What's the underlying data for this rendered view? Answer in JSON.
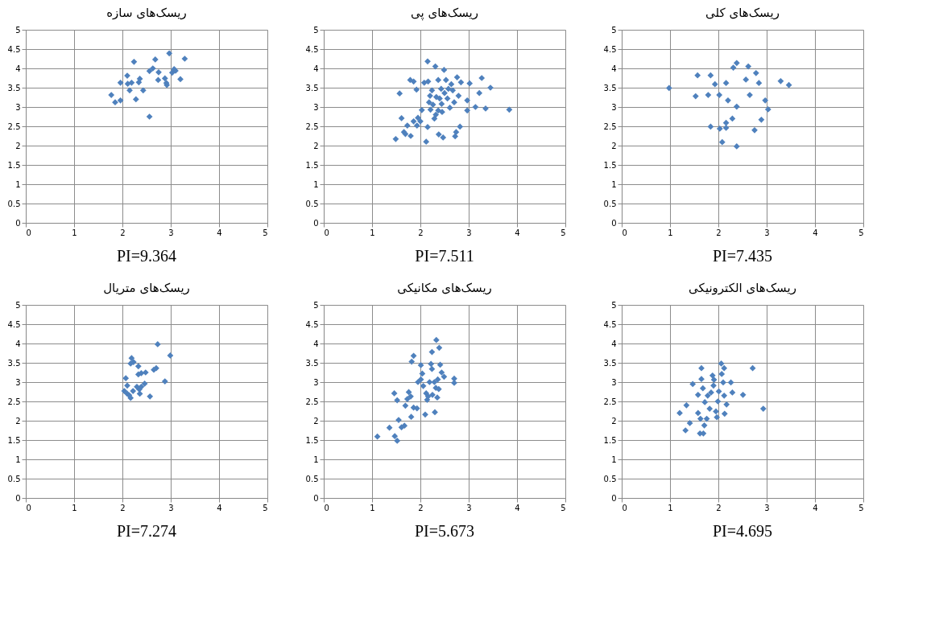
{
  "chart_data": [
    {
      "type": "scatter",
      "title": "ریسک‌های سازه",
      "annotations": [
        "PI=9.364"
      ],
      "xlim": [
        0,
        5
      ],
      "ylim": [
        0,
        5
      ],
      "xticks": [
        0,
        1,
        2,
        3,
        4,
        5
      ],
      "yticks": [
        0,
        0.5,
        1,
        1.5,
        2,
        2.5,
        3,
        3.5,
        4,
        4.5,
        5
      ],
      "grid": true,
      "marker": "diamond",
      "series": [
        {
          "color": "#4f81bd",
          "x": [
            1.77,
            1.85,
            1.96,
            1.96,
            2.1,
            2.11,
            2.15,
            2.19,
            2.24,
            2.28,
            2.34,
            2.36,
            2.43,
            2.56,
            2.56,
            2.63,
            2.68,
            2.74,
            2.75,
            2.88,
            2.91,
            2.92,
            2.97,
            3.03,
            3.07,
            3.1,
            3.2,
            3.29
          ],
          "values": [
            3.31,
            3.12,
            3.17,
            3.63,
            3.81,
            3.6,
            3.43,
            3.63,
            4.17,
            3.2,
            3.64,
            3.73,
            3.43,
            2.75,
            3.93,
            4.0,
            4.23,
            3.7,
            3.9,
            3.74,
            3.62,
            3.57,
            4.39,
            3.89,
            3.98,
            3.94,
            3.72,
            4.25
          ]
        }
      ]
    },
    {
      "type": "scatter",
      "title": "ریسک‌های پی",
      "annotations": [
        "PI=7.511"
      ],
      "xlim": [
        0,
        5
      ],
      "ylim": [
        0,
        5
      ],
      "xticks": [
        0,
        1,
        2,
        3,
        4,
        5
      ],
      "yticks": [
        0,
        0.5,
        1,
        1.5,
        2,
        2.5,
        3,
        3.5,
        4,
        4.5,
        5
      ],
      "grid": true,
      "marker": "diamond",
      "series": [
        {
          "color": "#4f81bd",
          "x": [
            1.49,
            1.57,
            1.61,
            1.66,
            1.69,
            1.73,
            1.79,
            1.8,
            1.86,
            1.86,
            1.92,
            1.93,
            1.95,
            2.0,
            2.03,
            2.12,
            2.15,
            2.15,
            2.16,
            2.18,
            2.2,
            2.21,
            2.24,
            2.26,
            2.29,
            2.31,
            2.33,
            2.37,
            2.37,
            2.38,
            2.4,
            2.43,
            2.44,
            2.45,
            2.47,
            2.49,
            2.5,
            2.53,
            2.56,
            2.58,
            2.61,
            2.64,
            2.67,
            2.7,
            2.72,
            2.74,
            2.76,
            2.79,
            2.82,
            2.84,
            2.97,
            2.97,
            3.02,
            3.14,
            3.22,
            3.27,
            3.35,
            3.45,
            3.84,
            2.08,
            2.32
          ],
          "values": [
            2.17,
            3.35,
            2.71,
            2.35,
            2.3,
            2.52,
            3.7,
            2.25,
            3.66,
            2.63,
            3.45,
            2.52,
            2.72,
            2.63,
            2.92,
            2.1,
            2.48,
            4.18,
            3.66,
            3.12,
            3.29,
            2.93,
            3.43,
            3.06,
            2.7,
            4.05,
            3.26,
            3.7,
            2.91,
            2.29,
            3.22,
            3.47,
            3.08,
            2.87,
            2.21,
            3.96,
            3.36,
            3.7,
            3.22,
            3.47,
            2.98,
            3.59,
            3.43,
            3.12,
            2.24,
            2.35,
            3.77,
            3.29,
            2.49,
            3.64,
            3.17,
            2.91,
            3.61,
            3.0,
            3.36,
            3.75,
            2.96,
            3.5,
            2.93,
            3.63,
            2.8
          ]
        }
      ]
    },
    {
      "type": "scatter",
      "title": "ریسک‌های کلی",
      "annotations": [
        "PI=7.435"
      ],
      "xlim": [
        0,
        5
      ],
      "ylim": [
        0,
        5
      ],
      "xticks": [
        0,
        1,
        2,
        3,
        4,
        5
      ],
      "yticks": [
        0,
        0.5,
        1,
        1.5,
        2,
        2.5,
        3,
        3.5,
        4,
        4.5,
        5
      ],
      "grid": true,
      "marker": "diamond",
      "series": [
        {
          "color": "#4f81bd",
          "x": [
            0.98,
            1.53,
            1.57,
            1.79,
            1.84,
            1.84,
            1.93,
            2.02,
            2.03,
            2.08,
            2.16,
            2.16,
            2.16,
            2.2,
            2.29,
            2.31,
            2.38,
            2.38,
            2.38,
            2.57,
            2.62,
            2.65,
            2.75,
            2.78,
            2.84,
            2.89,
            2.97,
            3.03,
            3.29,
            3.46
          ],
          "values": [
            3.49,
            3.28,
            3.82,
            3.31,
            3.82,
            2.49,
            3.59,
            3.31,
            2.44,
            2.09,
            3.62,
            2.46,
            2.59,
            3.17,
            2.7,
            4.02,
            4.14,
            3.01,
            1.98,
            3.71,
            4.05,
            3.31,
            2.4,
            3.88,
            3.62,
            2.67,
            3.17,
            2.94,
            3.67,
            3.57
          ]
        }
      ]
    },
    {
      "type": "scatter",
      "title": "ریسک‌های متریال",
      "annotations": [
        "PI=7.274"
      ],
      "xlim": [
        0,
        5
      ],
      "ylim": [
        0,
        5
      ],
      "xticks": [
        0,
        1,
        2,
        3,
        4,
        5
      ],
      "yticks": [
        0,
        0.5,
        1,
        1.5,
        2,
        2.5,
        3,
        3.5,
        4,
        4.5,
        5
      ],
      "grid": true,
      "marker": "diamond",
      "series": [
        {
          "color": "#4f81bd",
          "x": [
            2.73,
            2.99,
            2.88,
            2.7,
            2.65,
            2.57,
            2.19,
            2.17,
            2.23,
            2.33,
            2.33,
            2.39,
            2.48,
            2.07,
            2.1,
            2.04,
            2.1,
            2.17,
            2.22,
            2.3,
            2.36,
            2.39,
            2.46,
            2.35,
            2.14
          ],
          "values": [
            3.98,
            3.69,
            3.02,
            3.36,
            3.32,
            2.63,
            3.62,
            3.48,
            3.52,
            3.41,
            3.2,
            3.23,
            3.25,
            3.1,
            2.91,
            2.77,
            2.7,
            2.59,
            2.77,
            2.88,
            2.7,
            2.88,
            2.96,
            2.81,
            2.66
          ]
        }
      ]
    },
    {
      "type": "scatter",
      "title": "ریسک‌های مکانیکی",
      "annotations": [
        "PI=5.673"
      ],
      "xlim": [
        0,
        5
      ],
      "ylim": [
        0,
        5
      ],
      "xticks": [
        0,
        1,
        2,
        3,
        4,
        5
      ],
      "yticks": [
        0,
        0.5,
        1,
        1.5,
        2,
        2.5,
        3,
        3.5,
        4,
        4.5,
        5
      ],
      "grid": true,
      "marker": "diamond",
      "series": [
        {
          "color": "#4f81bd",
          "x": [
            1.11,
            1.36,
            1.46,
            1.47,
            1.52,
            1.52,
            1.55,
            1.61,
            1.67,
            1.69,
            1.73,
            1.76,
            1.8,
            1.81,
            1.82,
            1.86,
            1.86,
            1.93,
            1.95,
            2.01,
            2.01,
            2.04,
            2.06,
            2.1,
            2.12,
            2.14,
            2.16,
            2.19,
            2.22,
            2.24,
            2.24,
            2.25,
            2.29,
            2.32,
            2.3,
            2.33,
            2.35,
            2.36,
            2.38,
            2.39,
            2.41,
            2.44,
            2.49,
            2.7,
            2.7
          ],
          "values": [
            1.59,
            1.82,
            2.71,
            1.6,
            1.48,
            2.53,
            2.02,
            1.83,
            1.87,
            2.39,
            2.56,
            2.74,
            2.63,
            2.1,
            3.53,
            3.68,
            2.34,
            2.32,
            3.0,
            3.07,
            3.44,
            3.22,
            2.9,
            2.16,
            2.71,
            2.54,
            2.63,
            3.0,
            3.47,
            3.34,
            3.78,
            2.67,
            3.0,
            2.85,
            2.22,
            4.09,
            2.6,
            3.07,
            2.82,
            3.89,
            3.45,
            3.25,
            3.14,
            3.09,
            2.98
          ]
        }
      ]
    },
    {
      "type": "scatter",
      "title": "ریسک‌های الکترونیکی",
      "annotations": [
        "PI=4.695"
      ],
      "xlim": [
        0,
        5
      ],
      "ylim": [
        0,
        5
      ],
      "xticks": [
        0,
        1,
        2,
        3,
        4,
        5
      ],
      "yticks": [
        0,
        0.5,
        1,
        1.5,
        2,
        2.5,
        3,
        3.5,
        4,
        4.5,
        5
      ],
      "grid": true,
      "marker": "diamond",
      "series": [
        {
          "color": "#4f81bd",
          "x": [
            1.2,
            1.32,
            1.34,
            1.41,
            1.47,
            1.58,
            1.58,
            1.62,
            1.63,
            1.65,
            1.65,
            1.68,
            1.69,
            1.71,
            1.72,
            1.76,
            1.78,
            1.82,
            1.85,
            1.9,
            1.91,
            1.95,
            1.97,
            1.99,
            2.01,
            2.06,
            2.07,
            2.1,
            2.12,
            2.12,
            2.13,
            2.17,
            2.26,
            2.29,
            2.51,
            2.71,
            2.93,
            1.88
          ],
          "values": [
            2.2,
            1.75,
            2.4,
            1.94,
            2.95,
            2.67,
            2.2,
            1.67,
            2.05,
            3.36,
            3.08,
            2.84,
            1.67,
            1.88,
            2.48,
            2.05,
            2.65,
            2.31,
            2.73,
            2.91,
            3.06,
            2.24,
            2.09,
            2.5,
            2.76,
            3.48,
            3.21,
            2.99,
            3.36,
            2.65,
            2.18,
            2.42,
            2.99,
            2.73,
            2.67,
            3.36,
            2.31,
            3.17
          ]
        }
      ]
    }
  ]
}
